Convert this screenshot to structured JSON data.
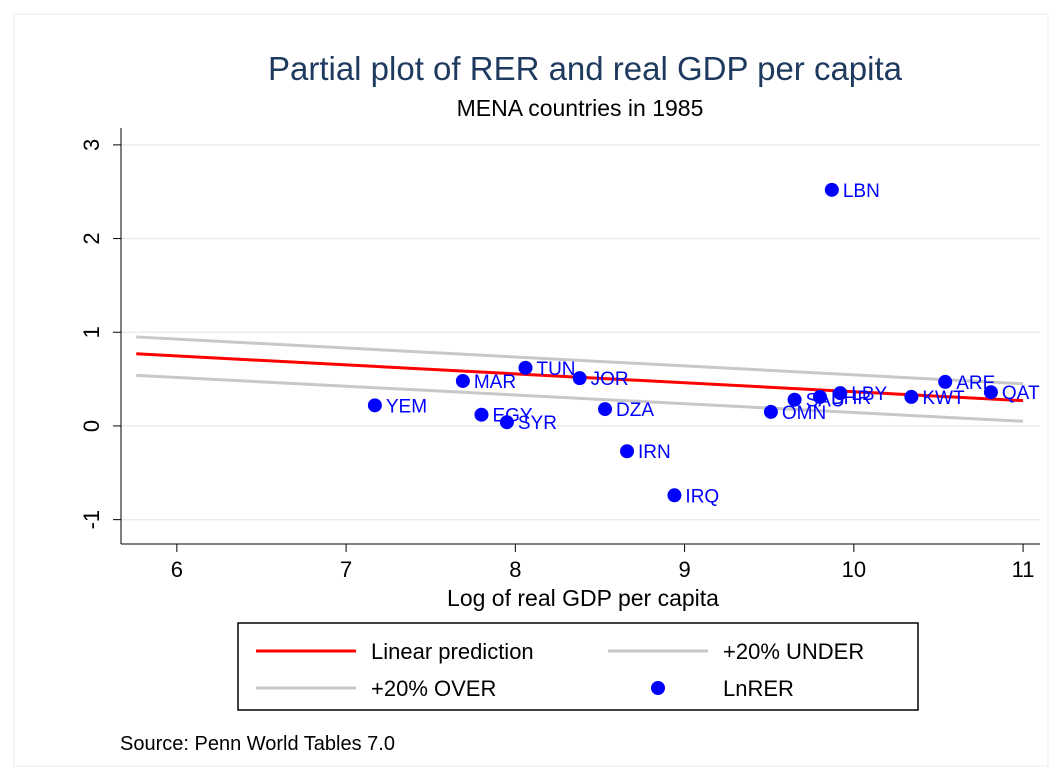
{
  "chart_data": {
    "type": "scatter",
    "title": "Partial plot of RER and real GDP per capita",
    "subtitle": "MENA countries in 1985",
    "x_label": "Log of real GDP per capita",
    "source": "Source: Penn World Tables 7.0",
    "xlim": [
      5.67,
      11.1
    ],
    "xticks": [
      6,
      7,
      8,
      9,
      10,
      11
    ],
    "ylim": [
      -1.26,
      3.18
    ],
    "yticks": [
      -1,
      0,
      1,
      2,
      3
    ],
    "grid": true,
    "series": [
      {
        "name": "Linear prediction",
        "kind": "line",
        "color": "#ff0000",
        "x": [
          5.76,
          11
        ],
        "values": [
          0.77,
          0.27
        ]
      },
      {
        "name": "+20% UNDER",
        "kind": "line",
        "color": "#c8c8c8",
        "x": [
          5.76,
          11
        ],
        "values": [
          0.95,
          0.45
        ]
      },
      {
        "name": "+20% OVER",
        "kind": "line",
        "color": "#c8c8c8",
        "x": [
          5.76,
          11
        ],
        "values": [
          0.54,
          0.05
        ]
      },
      {
        "name": "LnRER",
        "kind": "scatter",
        "color": "#0000ff",
        "labels": [
          "YEM",
          "MAR",
          "EGY",
          "SYR",
          "TUN",
          "JOR",
          "DZA",
          "IRN",
          "IRQ",
          "OMN",
          "SAU",
          "BHR",
          "LBY",
          "LBN",
          "KWT",
          "ARE",
          "QAT"
        ],
        "x": [
          7.17,
          7.69,
          7.8,
          7.95,
          8.06,
          8.38,
          8.53,
          8.66,
          8.94,
          9.51,
          9.65,
          9.8,
          9.92,
          9.87,
          10.34,
          10.54,
          10.81
        ],
        "values": [
          0.22,
          0.48,
          0.12,
          0.04,
          0.62,
          0.51,
          0.18,
          -0.27,
          -0.74,
          0.15,
          0.28,
          0.31,
          0.35,
          2.52,
          0.31,
          0.47,
          0.36
        ]
      }
    ]
  }
}
